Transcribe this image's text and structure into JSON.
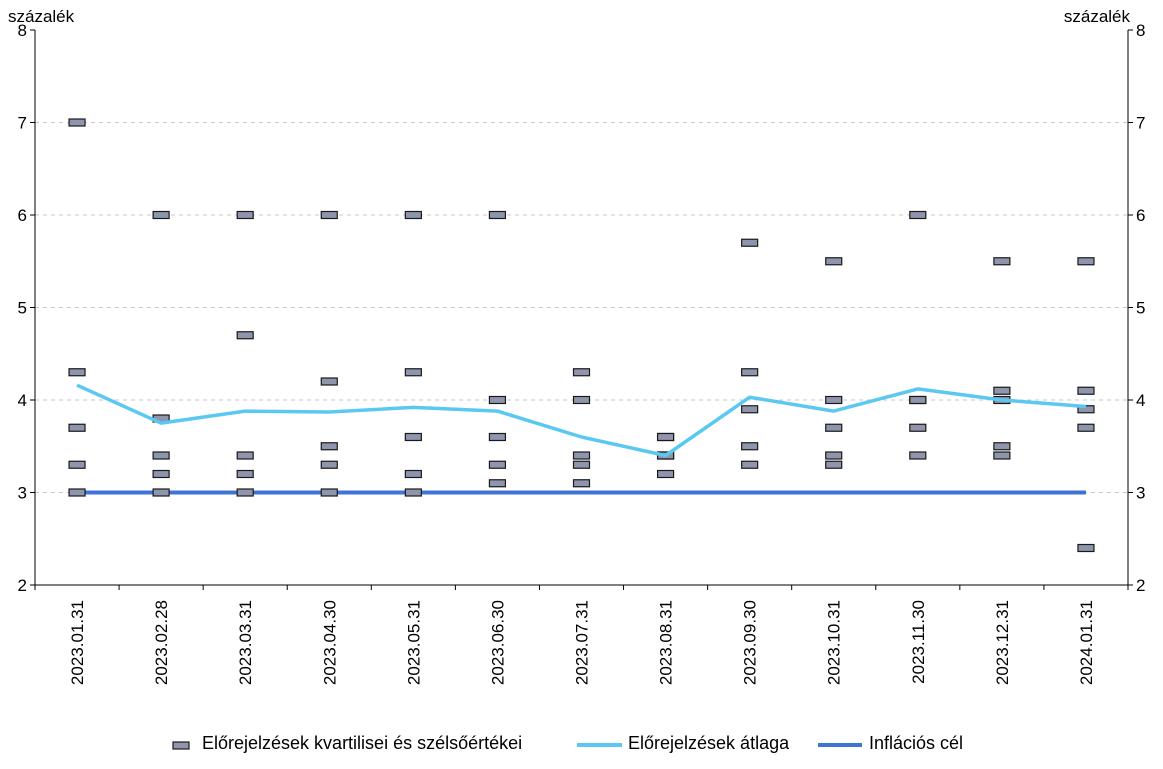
{
  "chart_data": {
    "type": "scatter",
    "y_unit_left": "százalék",
    "y_unit_right": "százalék",
    "ylim": [
      2,
      8
    ],
    "yticks": [
      2,
      3,
      4,
      5,
      6,
      7,
      8
    ],
    "grid": true,
    "legend_position": "bottom",
    "categories": [
      "2023.01.31",
      "2023.02.28",
      "2023.03.31",
      "2023.04.30",
      "2023.05.31",
      "2023.06.30",
      "2023.07.31",
      "2023.08.31",
      "2023.09.30",
      "2023.10.31",
      "2023.11.30",
      "2023.12.31",
      "2024.01.31"
    ],
    "series": [
      {
        "name": "Előrejelzések kvartilisei és szélsőértékei",
        "kind": "markers",
        "color": "#8e95ad",
        "values": [
          [
            3.0,
            3.3,
            3.7,
            4.3,
            7.0
          ],
          [
            3.0,
            3.2,
            3.4,
            3.8,
            6.0
          ],
          [
            3.0,
            3.2,
            3.4,
            4.7,
            6.0
          ],
          [
            3.0,
            3.3,
            3.5,
            4.2,
            6.0
          ],
          [
            3.0,
            3.2,
            3.6,
            4.3,
            6.0
          ],
          [
            3.1,
            3.3,
            3.6,
            4.0,
            6.0
          ],
          [
            3.1,
            3.3,
            3.4,
            4.0,
            4.3
          ],
          [
            3.2,
            3.4,
            3.4,
            3.6,
            3.6
          ],
          [
            3.3,
            3.5,
            3.9,
            4.3,
            5.7
          ],
          [
            3.3,
            3.4,
            3.7,
            4.0,
            5.5
          ],
          [
            3.4,
            3.7,
            4.0,
            4.0,
            6.0
          ],
          [
            3.4,
            3.5,
            4.0,
            4.1,
            5.5
          ],
          [
            2.4,
            3.7,
            3.9,
            4.1,
            5.5
          ]
        ]
      },
      {
        "name": "Előrejelzések átlaga",
        "kind": "line",
        "color": "#5bc8f2",
        "values": [
          4.16,
          3.75,
          3.88,
          3.87,
          3.92,
          3.88,
          3.6,
          3.4,
          4.03,
          3.88,
          4.12,
          4.0,
          3.93
        ]
      },
      {
        "name": "Inflációs cél",
        "kind": "line",
        "color": "#3f74d6",
        "values": [
          3,
          3,
          3,
          3,
          3,
          3,
          3,
          3,
          3,
          3,
          3,
          3,
          3
        ]
      }
    ]
  }
}
